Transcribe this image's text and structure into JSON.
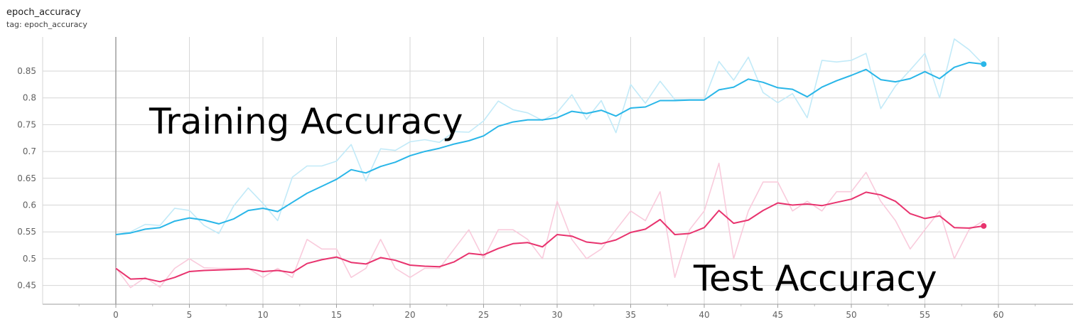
{
  "header": {
    "title": "epoch_accuracy",
    "tag": "tag: epoch_accuracy"
  },
  "chart_data": {
    "type": "line",
    "title": "epoch_accuracy",
    "xlabel": "",
    "ylabel": "",
    "xlim": [
      -5,
      65
    ],
    "ylim": [
      0.415,
      0.9
    ],
    "grid": true,
    "xticks": [
      0,
      5,
      10,
      15,
      20,
      25,
      30,
      35,
      40,
      45,
      50,
      55,
      60
    ],
    "yticks": [
      0.45,
      0.5,
      0.55,
      0.6,
      0.65,
      0.7,
      0.75,
      0.8,
      0.85
    ],
    "annotations": [
      "Training Accuracy",
      "Test Accuracy"
    ],
    "x": [
      0,
      1,
      2,
      3,
      4,
      5,
      6,
      7,
      8,
      9,
      10,
      11,
      12,
      13,
      14,
      15,
      16,
      17,
      18,
      19,
      20,
      21,
      22,
      23,
      24,
      25,
      26,
      27,
      28,
      29,
      30,
      31,
      32,
      33,
      34,
      35,
      36,
      37,
      38,
      39,
      40,
      41,
      42,
      43,
      44,
      45,
      46,
      47,
      48,
      49,
      50,
      51,
      52,
      53,
      54,
      55,
      56,
      57,
      58,
      59
    ],
    "series": [
      {
        "color": "#29b6e8",
        "raw_color": "#c2eaf8",
        "raw": [
          0.545,
          0.55,
          0.564,
          0.562,
          0.594,
          0.59,
          0.562,
          0.547,
          0.598,
          0.632,
          0.603,
          0.571,
          0.652,
          0.673,
          0.673,
          0.682,
          0.713,
          0.645,
          0.705,
          0.702,
          0.718,
          0.722,
          0.717,
          0.737,
          0.736,
          0.757,
          0.794,
          0.778,
          0.772,
          0.758,
          0.773,
          0.806,
          0.76,
          0.795,
          0.735,
          0.825,
          0.79,
          0.831,
          0.797,
          0.797,
          0.797,
          0.868,
          0.833,
          0.876,
          0.81,
          0.791,
          0.808,
          0.763,
          0.87,
          0.867,
          0.87,
          0.883,
          0.78,
          0.822,
          0.852,
          0.883,
          0.8,
          0.91,
          0.89,
          0.862
        ],
        "smoothed": [
          0.545,
          0.548,
          0.555,
          0.558,
          0.57,
          0.576,
          0.572,
          0.565,
          0.574,
          0.59,
          0.594,
          0.588,
          0.605,
          0.622,
          0.635,
          0.648,
          0.666,
          0.66,
          0.672,
          0.68,
          0.692,
          0.7,
          0.706,
          0.714,
          0.72,
          0.729,
          0.747,
          0.755,
          0.759,
          0.759,
          0.763,
          0.775,
          0.771,
          0.777,
          0.766,
          0.781,
          0.783,
          0.795,
          0.795,
          0.796,
          0.796,
          0.815,
          0.82,
          0.835,
          0.829,
          0.819,
          0.816,
          0.802,
          0.82,
          0.832,
          0.842,
          0.853,
          0.834,
          0.83,
          0.836,
          0.849,
          0.836,
          0.857,
          0.866,
          0.863
        ]
      },
      {
        "color": "#e8336e",
        "raw_color": "#f9cbdc",
        "raw": [
          0.483,
          0.446,
          0.465,
          0.447,
          0.482,
          0.5,
          0.483,
          0.482,
          0.482,
          0.482,
          0.465,
          0.482,
          0.465,
          0.536,
          0.518,
          0.518,
          0.465,
          0.482,
          0.536,
          0.482,
          0.465,
          0.482,
          0.482,
          0.518,
          0.554,
          0.5,
          0.554,
          0.554,
          0.536,
          0.5,
          0.607,
          0.536,
          0.5,
          0.518,
          0.554,
          0.589,
          0.571,
          0.625,
          0.465,
          0.554,
          0.589,
          0.678,
          0.5,
          0.589,
          0.643,
          0.643,
          0.589,
          0.607,
          0.589,
          0.625,
          0.625,
          0.661,
          0.607,
          0.571,
          0.518,
          0.554,
          0.589,
          0.5,
          0.554,
          0.571
        ],
        "smoothed": [
          0.482,
          0.462,
          0.463,
          0.457,
          0.465,
          0.476,
          0.478,
          0.479,
          0.48,
          0.481,
          0.476,
          0.478,
          0.474,
          0.491,
          0.498,
          0.503,
          0.493,
          0.49,
          0.502,
          0.497,
          0.488,
          0.486,
          0.485,
          0.494,
          0.51,
          0.507,
          0.519,
          0.528,
          0.53,
          0.522,
          0.545,
          0.542,
          0.531,
          0.528,
          0.535,
          0.549,
          0.555,
          0.573,
          0.545,
          0.547,
          0.558,
          0.59,
          0.566,
          0.572,
          0.59,
          0.604,
          0.6,
          0.602,
          0.599,
          0.605,
          0.611,
          0.624,
          0.619,
          0.607,
          0.584,
          0.575,
          0.58,
          0.558,
          0.557,
          0.561
        ]
      }
    ]
  }
}
